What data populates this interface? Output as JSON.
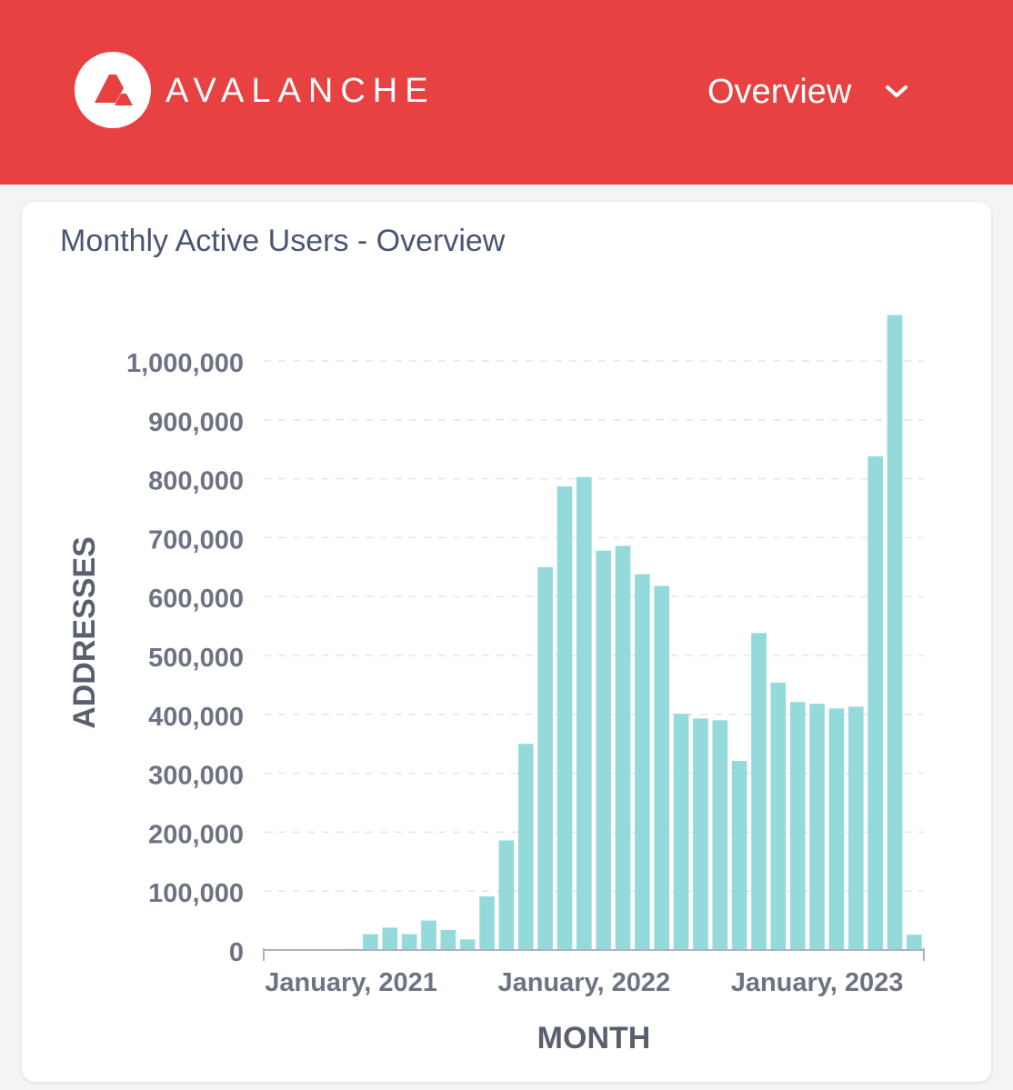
{
  "header": {
    "brand": "AVALANCHE",
    "logo_icon": "avalanche-logo-icon",
    "nav_select_label": "Overview",
    "nav_select_icon": "chevron-down-icon",
    "background_color": "#e84142"
  },
  "card": {
    "title": "Monthly Active Users - Overview"
  },
  "chart_data": {
    "type": "bar",
    "title": "Monthly Active Users - Overview",
    "xlabel": "MONTH",
    "ylabel": "ADDRESSES",
    "ylim": [
      0,
      1100000
    ],
    "grid": true,
    "bar_color": "#95dadb",
    "y_ticks": [
      0,
      100000,
      200000,
      300000,
      400000,
      500000,
      600000,
      700000,
      800000,
      900000,
      1000000
    ],
    "y_tick_labels": [
      "0",
      "100,000",
      "200,000",
      "300,000",
      "400,000",
      "500,000",
      "600,000",
      "700,000",
      "800,000",
      "900,000",
      "1,000,000"
    ],
    "x_tick_labels": [
      "January, 2021",
      "January, 2022",
      "January, 2023"
    ],
    "x_tick_indices": [
      4,
      16,
      28
    ],
    "values": [
      1000,
      1500,
      1500,
      1500,
      2000,
      27000,
      38000,
      27000,
      50000,
      34000,
      18000,
      91000,
      186000,
      350000,
      650000,
      787000,
      803000,
      678000,
      686000,
      638000,
      618000,
      401000,
      393000,
      390000,
      321000,
      538000,
      454000,
      421000,
      418000,
      410000,
      413000,
      838000,
      1078000,
      26000
    ]
  }
}
